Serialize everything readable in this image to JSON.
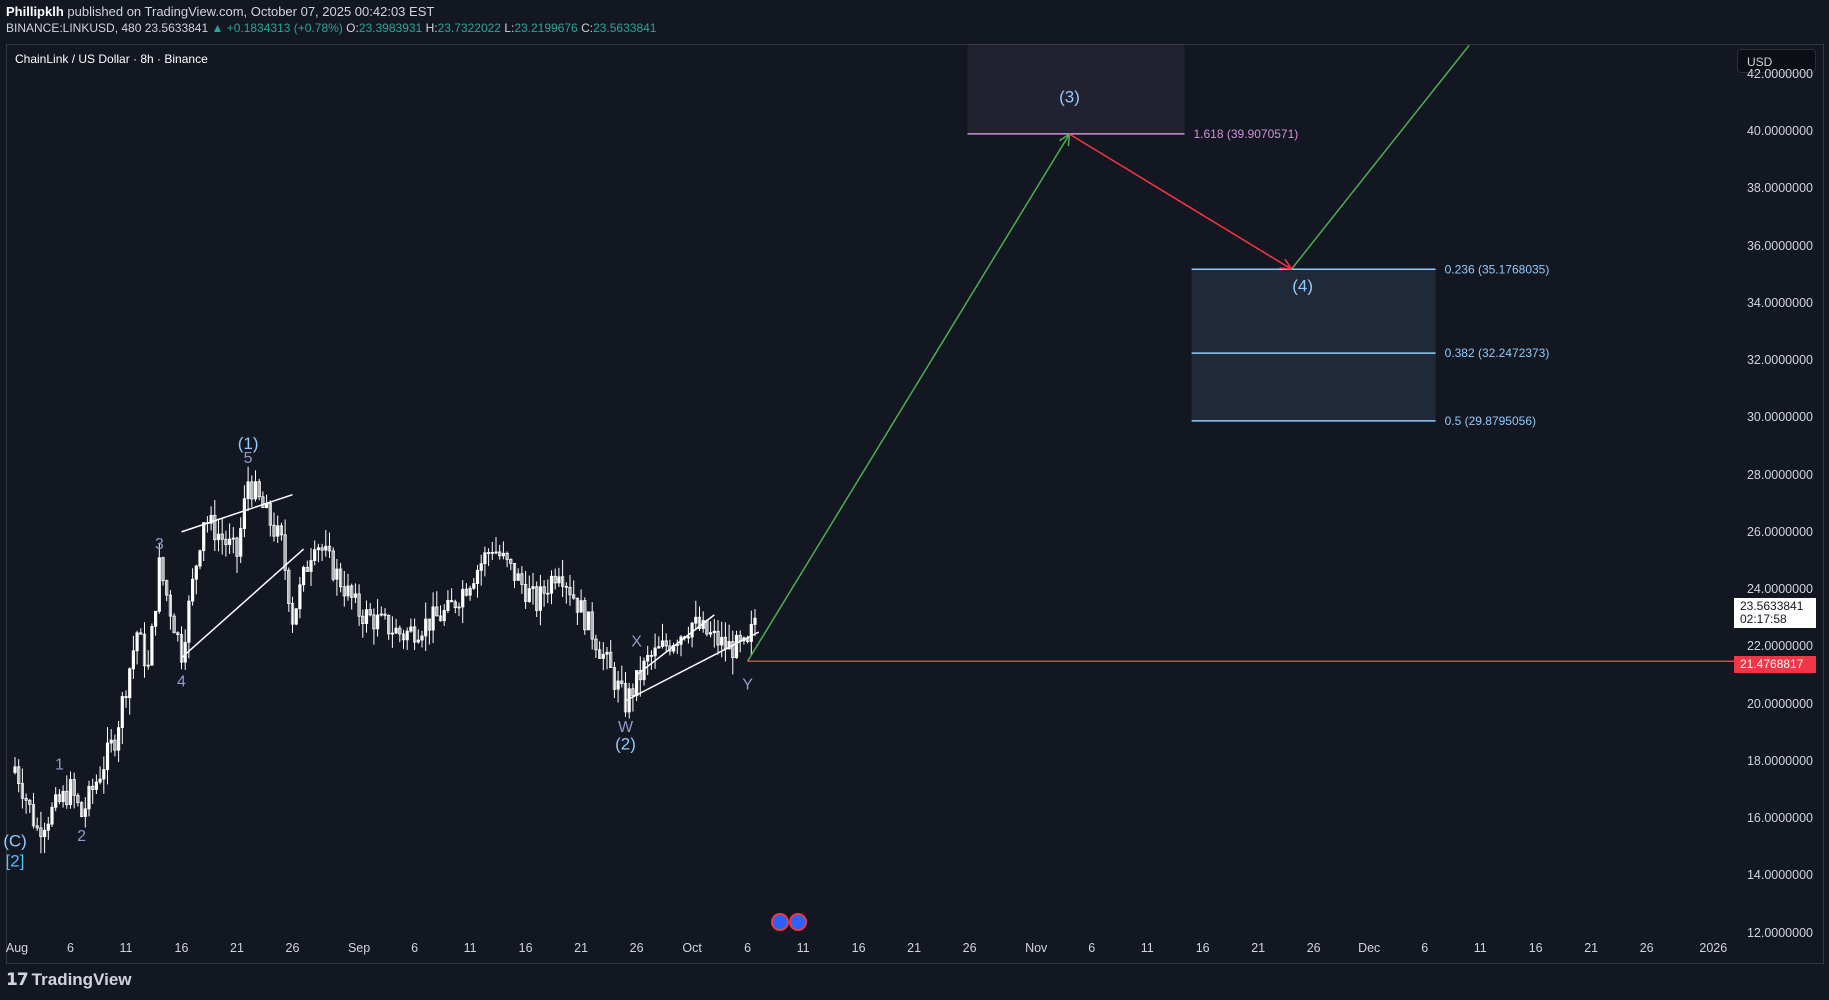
{
  "header": {
    "author": "Phillipklh",
    "published": "published on TradingView.com, October 07, 2025 00:42:03 EST",
    "symbol_line": "BINANCE:LINKUSD, 480",
    "last": "23.5633841",
    "change": "▲ +0.1834313 (+0.78%)",
    "o_label": "O:",
    "o": "23.3983931",
    "h_label": "H:",
    "h": "23.7322022",
    "l_label": "L:",
    "l": "23.2199676",
    "c_label": "C:",
    "c": "23.5633841"
  },
  "chart_title": "ChainLink / US Dollar · 8h · Binance",
  "currency": "USD",
  "current_price": {
    "value": "23.5633841",
    "countdown": "02:17:58"
  },
  "stop_price": "21.4768817",
  "footer": {
    "brand": "TradingView",
    "icon": "tradingview-logo-icon"
  },
  "colors": {
    "background": "#131722",
    "candle": "#ffffff",
    "impulse_arrow": "#4caf50",
    "correction_arrow": "#f23645",
    "stop_line": "#f23645",
    "fib_ext": "#ce93d8",
    "fib_retr": "#90caf9",
    "wave_label": "#9598c8"
  },
  "chart_data": {
    "type": "candlestick",
    "ylim": [
      12,
      43
    ],
    "y_ticks": [
      "42.0000000",
      "40.0000000",
      "38.0000000",
      "36.0000000",
      "34.0000000",
      "32.0000000",
      "30.0000000",
      "28.0000000",
      "26.0000000",
      "24.0000000",
      "22.0000000",
      "20.0000000",
      "18.0000000",
      "16.0000000",
      "14.0000000",
      "12.0000000"
    ],
    "x_ticks": [
      "Aug",
      "6",
      "11",
      "16",
      "21",
      "26",
      "Sep",
      "6",
      "11",
      "16",
      "21",
      "26",
      "Oct",
      "6",
      "11",
      "16",
      "21",
      "26",
      "Nov",
      "6",
      "11",
      "16",
      "21",
      "26",
      "Dec",
      "6",
      "11",
      "16",
      "21",
      "26",
      "2026"
    ],
    "price_path": [
      {
        "date": "2025-08-01",
        "price": 17.8
      },
      {
        "date": "2025-08-03",
        "price": 15.6
      },
      {
        "date": "2025-08-06",
        "price": 17.0
      },
      {
        "date": "2025-08-07",
        "price": 16.1
      },
      {
        "date": "2025-08-10",
        "price": 18.8
      },
      {
        "date": "2025-08-12",
        "price": 22.5
      },
      {
        "date": "2025-08-13",
        "price": 21.2
      },
      {
        "date": "2025-08-14",
        "price": 24.8
      },
      {
        "date": "2025-08-16",
        "price": 21.8
      },
      {
        "date": "2025-08-18",
        "price": 26.5
      },
      {
        "date": "2025-08-21",
        "price": 25.2
      },
      {
        "date": "2025-08-22",
        "price": 27.8
      },
      {
        "date": "2025-08-25",
        "price": 25.6
      },
      {
        "date": "2025-08-26",
        "price": 23.0
      },
      {
        "date": "2025-08-28",
        "price": 25.8
      },
      {
        "date": "2025-09-01",
        "price": 23.2
      },
      {
        "date": "2025-09-05",
        "price": 22.4
      },
      {
        "date": "2025-09-09",
        "price": 23.2
      },
      {
        "date": "2025-09-13",
        "price": 25.5
      },
      {
        "date": "2025-09-17",
        "price": 23.5
      },
      {
        "date": "2025-09-19",
        "price": 24.8
      },
      {
        "date": "2025-09-22",
        "price": 22.5
      },
      {
        "date": "2025-09-25",
        "price": 20.0
      },
      {
        "date": "2025-09-27",
        "price": 21.5
      },
      {
        "date": "2025-10-01",
        "price": 22.8
      },
      {
        "date": "2025-10-04",
        "price": 22.0
      },
      {
        "date": "2025-10-06",
        "price": 21.9
      },
      {
        "date": "2025-10-07",
        "price": 23.56
      }
    ],
    "wave_labels": [
      {
        "text": "(C)",
        "date": "2025-08-01",
        "price": 15.0
      },
      {
        "text": "[2]",
        "date": "2025-08-01",
        "price": 14.3
      },
      {
        "text": "1",
        "date": "2025-08-05",
        "price": 17.7
      },
      {
        "text": "2",
        "date": "2025-08-07",
        "price": 15.2
      },
      {
        "text": "3",
        "date": "2025-08-14",
        "price": 25.4
      },
      {
        "text": "4",
        "date": "2025-08-16",
        "price": 20.6
      },
      {
        "text": "(1)",
        "date": "2025-08-22",
        "price": 28.9
      },
      {
        "text": "5",
        "date": "2025-08-22",
        "price": 28.4
      },
      {
        "text": "X",
        "date": "2025-09-26",
        "price": 22.0
      },
      {
        "text": "W",
        "date": "2025-09-25",
        "price": 19.0
      },
      {
        "text": "(2)",
        "date": "2025-09-25",
        "price": 18.4
      },
      {
        "text": "Y",
        "date": "2025-10-06",
        "price": 20.5
      },
      {
        "text": "(3)",
        "date": "2025-11-04",
        "price": 41.0
      },
      {
        "text": "(4)",
        "date": "2025-11-25",
        "price": 34.4
      }
    ],
    "projection": [
      {
        "date": "2025-10-06",
        "price": 21.48
      },
      {
        "date": "2025-11-04",
        "price": 39.9
      },
      {
        "date": "2025-11-24",
        "price": 35.18
      },
      {
        "date": "2025-12-10",
        "price": 43.0
      }
    ],
    "stop_line_price": 21.4768817,
    "fib_levels": [
      {
        "label": "1.618 (39.9070571)",
        "price": 39.9070571
      },
      {
        "label": "0.236 (35.1768035)",
        "price": 35.1768035
      },
      {
        "label": "0.382 (32.2472373)",
        "price": 32.2472373
      },
      {
        "label": "0.5 (29.8795056)",
        "price": 29.8795056
      }
    ],
    "grid": false
  }
}
